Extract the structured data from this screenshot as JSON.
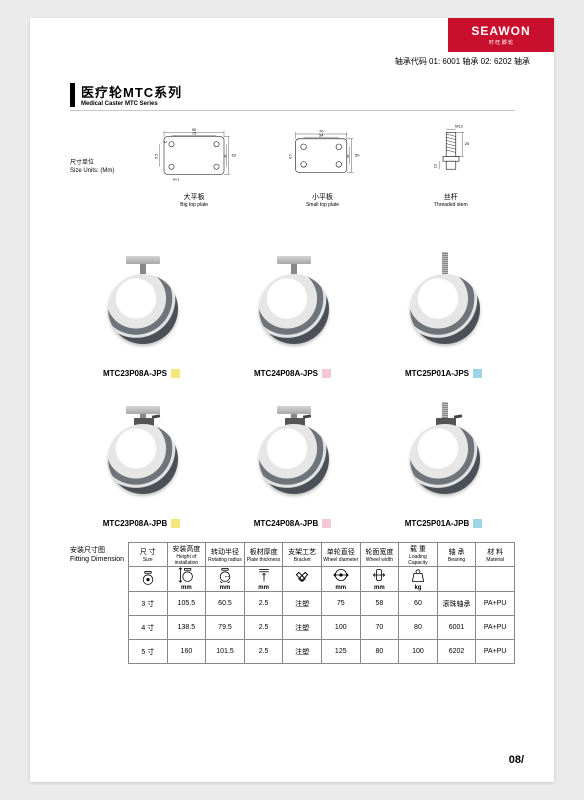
{
  "brand": {
    "name": "SEAWON",
    "sub": "时 旺 脚 轮"
  },
  "code_line": "轴承代码 01: 6001 轴承  02: 6202 轴承",
  "series": {
    "cn": "医疗轮MTC系列",
    "en": "Medical Caster MTC Series"
  },
  "size_unit": {
    "cn": "尺寸单位",
    "en": "Size Units: (Mm)"
  },
  "drawings": {
    "big": {
      "cn": "大平板",
      "en": "Big top plate",
      "w": 90,
      "h": 63,
      "iw": 75,
      "ih": 45,
      "hole": 5.5,
      "slot": 12,
      "r": "R4.3"
    },
    "small": {
      "cn": "小平板",
      "en": "Small top plate",
      "w": 70,
      "h": 50,
      "iw": 54,
      "ih": 35,
      "hole": 6.5
    },
    "stem": {
      "cn": "丝杆",
      "en": "Threaded stem",
      "thread": "M12",
      "len": 25,
      "dia": 12
    }
  },
  "products": [
    {
      "sku": "MTC23P08A-JPS",
      "chip": "#f5e67b",
      "mount": "plate"
    },
    {
      "sku": "MTC24P08A-JPS",
      "chip": "#f5c6d6",
      "mount": "plate"
    },
    {
      "sku": "MTC25P01A-JPS",
      "chip": "#9fd3e8",
      "mount": "stem"
    },
    {
      "sku": "MTC23P08A-JPB",
      "chip": "#f5e67b",
      "mount": "plate",
      "brake": true
    },
    {
      "sku": "MTC24P08A-JPB",
      "chip": "#f5c6d6",
      "mount": "plate",
      "brake": true
    },
    {
      "sku": "MTC25P01A-JPB",
      "chip": "#9fd3e8",
      "mount": "stem",
      "brake": true
    }
  ],
  "fitting": {
    "cn": "安装尺寸图",
    "en": "Fitting Dimension"
  },
  "table": {
    "columns": [
      {
        "cn": "尺 寸",
        "en": "Size",
        "icon": "caster",
        "unit": ""
      },
      {
        "cn": "安装高度",
        "en": "Height of installation",
        "icon": "height",
        "unit": "mm"
      },
      {
        "cn": "转动半径",
        "en": "Rotating radius",
        "icon": "radius",
        "unit": "mm"
      },
      {
        "cn": "板材厚度",
        "en": "Plate thickness",
        "icon": "thick",
        "unit": "mm"
      },
      {
        "cn": "支架工艺",
        "en": "Bracket",
        "icon": "tool",
        "unit": ""
      },
      {
        "cn": "单轮直径",
        "en": "Wheel diameter",
        "icon": "diam",
        "unit": "mm"
      },
      {
        "cn": "轮面宽度",
        "en": "Wheel width",
        "icon": "width",
        "unit": "mm"
      },
      {
        "cn": "载 重",
        "en": "Loading Capacity",
        "icon": "load",
        "unit": "kg"
      },
      {
        "cn": "轴 承",
        "en": "Bearing",
        "icon": "",
        "unit": ""
      },
      {
        "cn": "材 料",
        "en": "Material",
        "icon": "",
        "unit": ""
      }
    ],
    "rows": [
      [
        "3 寸",
        "105.5",
        "60.5",
        "2.5",
        "注塑",
        "75",
        "58",
        "60",
        "滚珠轴承",
        "PA+PU"
      ],
      [
        "4 寸",
        "138.5",
        "79.5",
        "2.5",
        "注塑",
        "100",
        "70",
        "80",
        "6001",
        "PA+PU"
      ],
      [
        "5 寸",
        "160",
        "101.5",
        "2.5",
        "注塑",
        "125",
        "80",
        "100",
        "6202",
        "PA+PU"
      ]
    ]
  },
  "page_num": "08/"
}
